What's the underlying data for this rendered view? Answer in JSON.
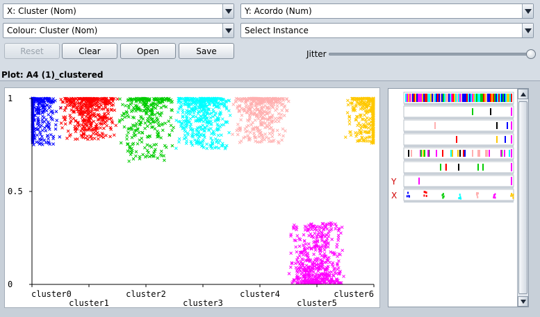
{
  "controls": {
    "x_axis": "X: Cluster (Nom)",
    "y_axis": "Y: Acordo (Num)",
    "colour": "Colour: Cluster (Nom)",
    "instance": "Select Instance"
  },
  "buttons": {
    "reset": "Reset",
    "clear": "Clear",
    "open": "Open",
    "save": "Save"
  },
  "jitter": {
    "label": "Jitter",
    "value": 1.0
  },
  "plot": {
    "title": "Plot: A4 (1)_clustered",
    "y_ticks": [
      "1",
      "0.5",
      "0"
    ],
    "x_ticks": [
      "cluster0",
      "cluster1",
      "cluster2",
      "cluster3",
      "cluster4",
      "cluster5",
      "cluster6"
    ]
  },
  "chart_data": {
    "type": "scatter",
    "xlabel": "",
    "ylabel": "",
    "ylim": [
      0,
      1
    ],
    "categories": [
      "cluster0",
      "cluster1",
      "cluster2",
      "cluster3",
      "cluster4",
      "cluster5",
      "cluster6"
    ],
    "series": [
      {
        "category": "cluster0",
        "color": "#0000ff",
        "y_min": 0.75,
        "y_max": 1.0,
        "count": 420
      },
      {
        "category": "cluster1",
        "color": "#ff0000",
        "y_min": 0.78,
        "y_max": 1.0,
        "count": 420
      },
      {
        "category": "cluster2",
        "color": "#00cc00",
        "y_min": 0.66,
        "y_max": 1.0,
        "count": 300
      },
      {
        "category": "cluster3",
        "color": "#00ffff",
        "y_min": 0.73,
        "y_max": 1.0,
        "count": 460
      },
      {
        "category": "cluster4",
        "color": "#ffafaf",
        "y_min": 0.76,
        "y_max": 1.0,
        "count": 380
      },
      {
        "category": "cluster5",
        "color": "#ff00ff",
        "y_min": 0.0,
        "y_max": 0.36,
        "count": 480
      },
      {
        "category": "cluster6",
        "color": "#ffc800",
        "y_min": 0.76,
        "y_max": 1.0,
        "count": 430
      }
    ]
  },
  "attribute_panel": {
    "y_marker": "Y",
    "x_marker": "X",
    "colors": [
      "#0000ff",
      "#ff0000",
      "#00cc00",
      "#00ffff",
      "#ffafaf",
      "#ff00ff",
      "#ffc800",
      "#000000"
    ]
  }
}
